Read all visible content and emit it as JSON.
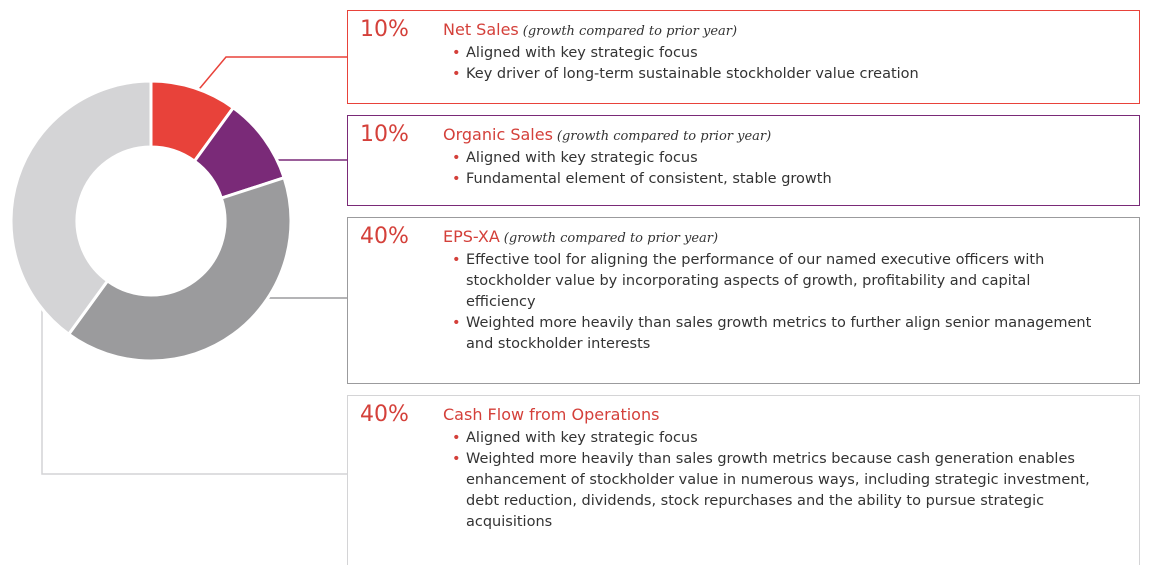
{
  "chart_data": {
    "type": "donut",
    "categories": [
      "Net Sales",
      "Organic Sales",
      "EPS-XA",
      "Cash Flow from Operations"
    ],
    "values": [
      10,
      10,
      40,
      40
    ],
    "value_labels": [
      "10%",
      "10%",
      "40%",
      "40%"
    ],
    "colors": [
      "#e8423a",
      "#7a2a78",
      "#9b9b9d",
      "#d4d4d6"
    ],
    "descriptions": [
      {
        "note": "(growth compared to prior year)",
        "bullets": [
          "Aligned with key strategic focus",
          "Key driver of long-term sustainable stockholder value creation"
        ]
      },
      {
        "note": "(growth compared to prior year)",
        "bullets": [
          "Aligned with key strategic focus",
          "Fundamental element of consistent, stable growth"
        ]
      },
      {
        "note": "(growth compared to prior year)",
        "bullets": [
          "Effective tool for aligning the performance of our named executive officers with stockholder value by incorporating aspects of growth, profitability and capital efficiency",
          "Weighted more heavily than sales growth metrics to further align senior management and stockholder interests"
        ]
      },
      {
        "bullets": [
          "Aligned with key strategic focus",
          "Weighted more heavily than sales growth metrics because cash generation enables enhancement of stockholder value in numerous ways, including strategic investment, debt reduction, dividends, stock repurchases and the ability to pursue strategic acquisitions"
        ]
      }
    ]
  }
}
